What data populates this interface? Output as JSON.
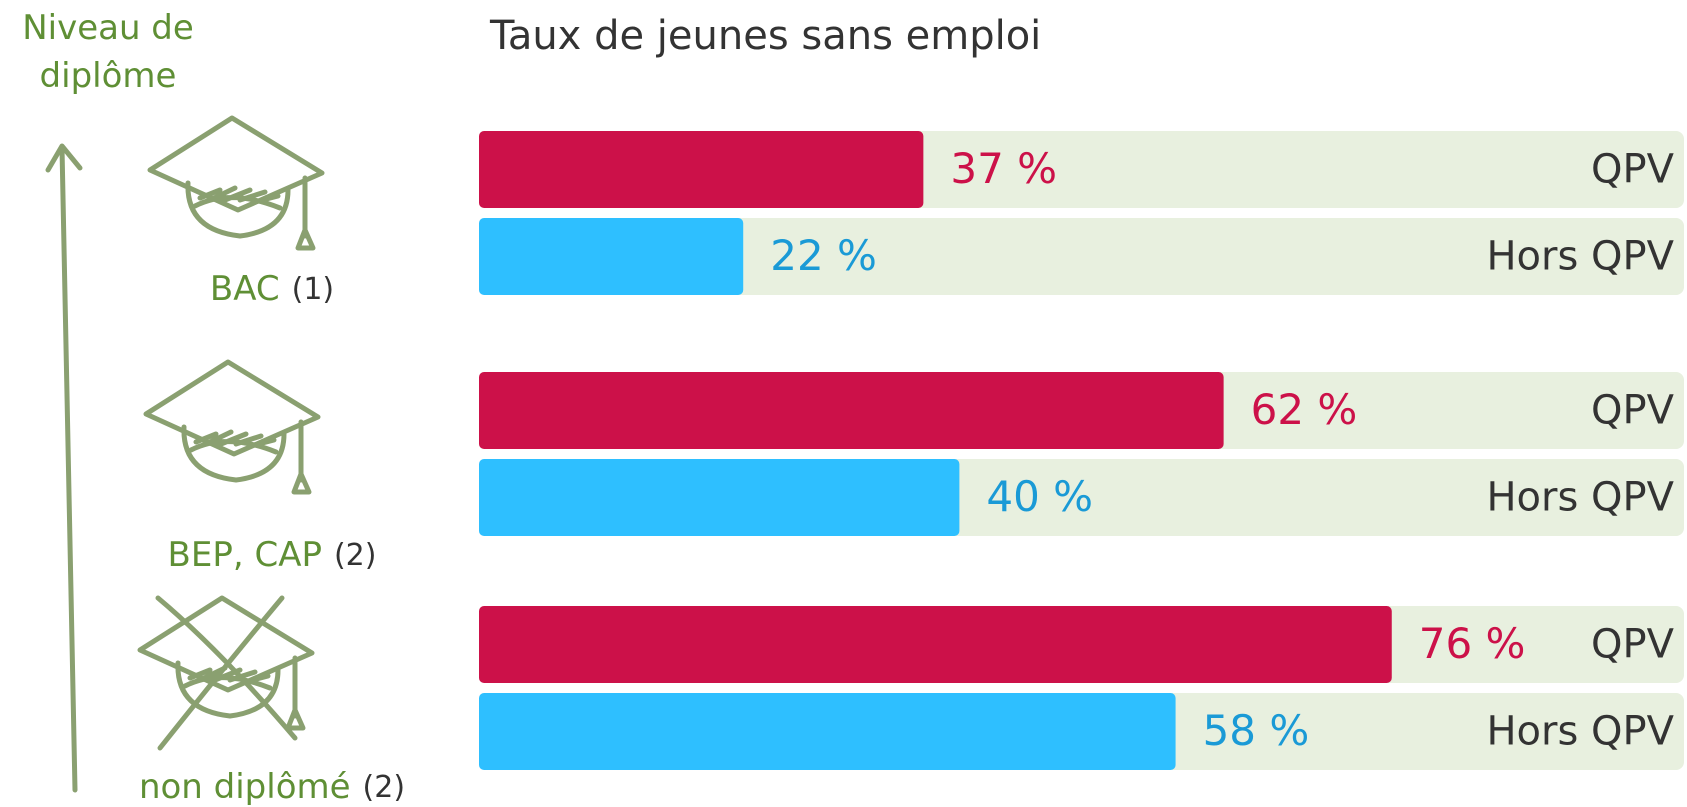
{
  "chart_data": {
    "type": "bar",
    "title": "Taux de jeunes sans emploi",
    "y_label": "Niveau de diplôme",
    "categories": [
      "BAC",
      "BEP, CAP",
      "non diplômé"
    ],
    "category_notes": [
      "(1)",
      "(2)",
      "(2)"
    ],
    "series": [
      {
        "name": "QPV",
        "color": "#cc1149",
        "values": [
          37,
          62,
          76
        ],
        "value_labels": [
          "37 %",
          "62 %",
          "76 %"
        ]
      },
      {
        "name": "Hors QPV",
        "color": "#2ebfff",
        "values": [
          22,
          40,
          58
        ],
        "value_labels": [
          "22 %",
          "40 %",
          "58 %"
        ],
        "label_color": "#1a9ad6"
      }
    ],
    "xlim": [
      0,
      100
    ]
  }
}
